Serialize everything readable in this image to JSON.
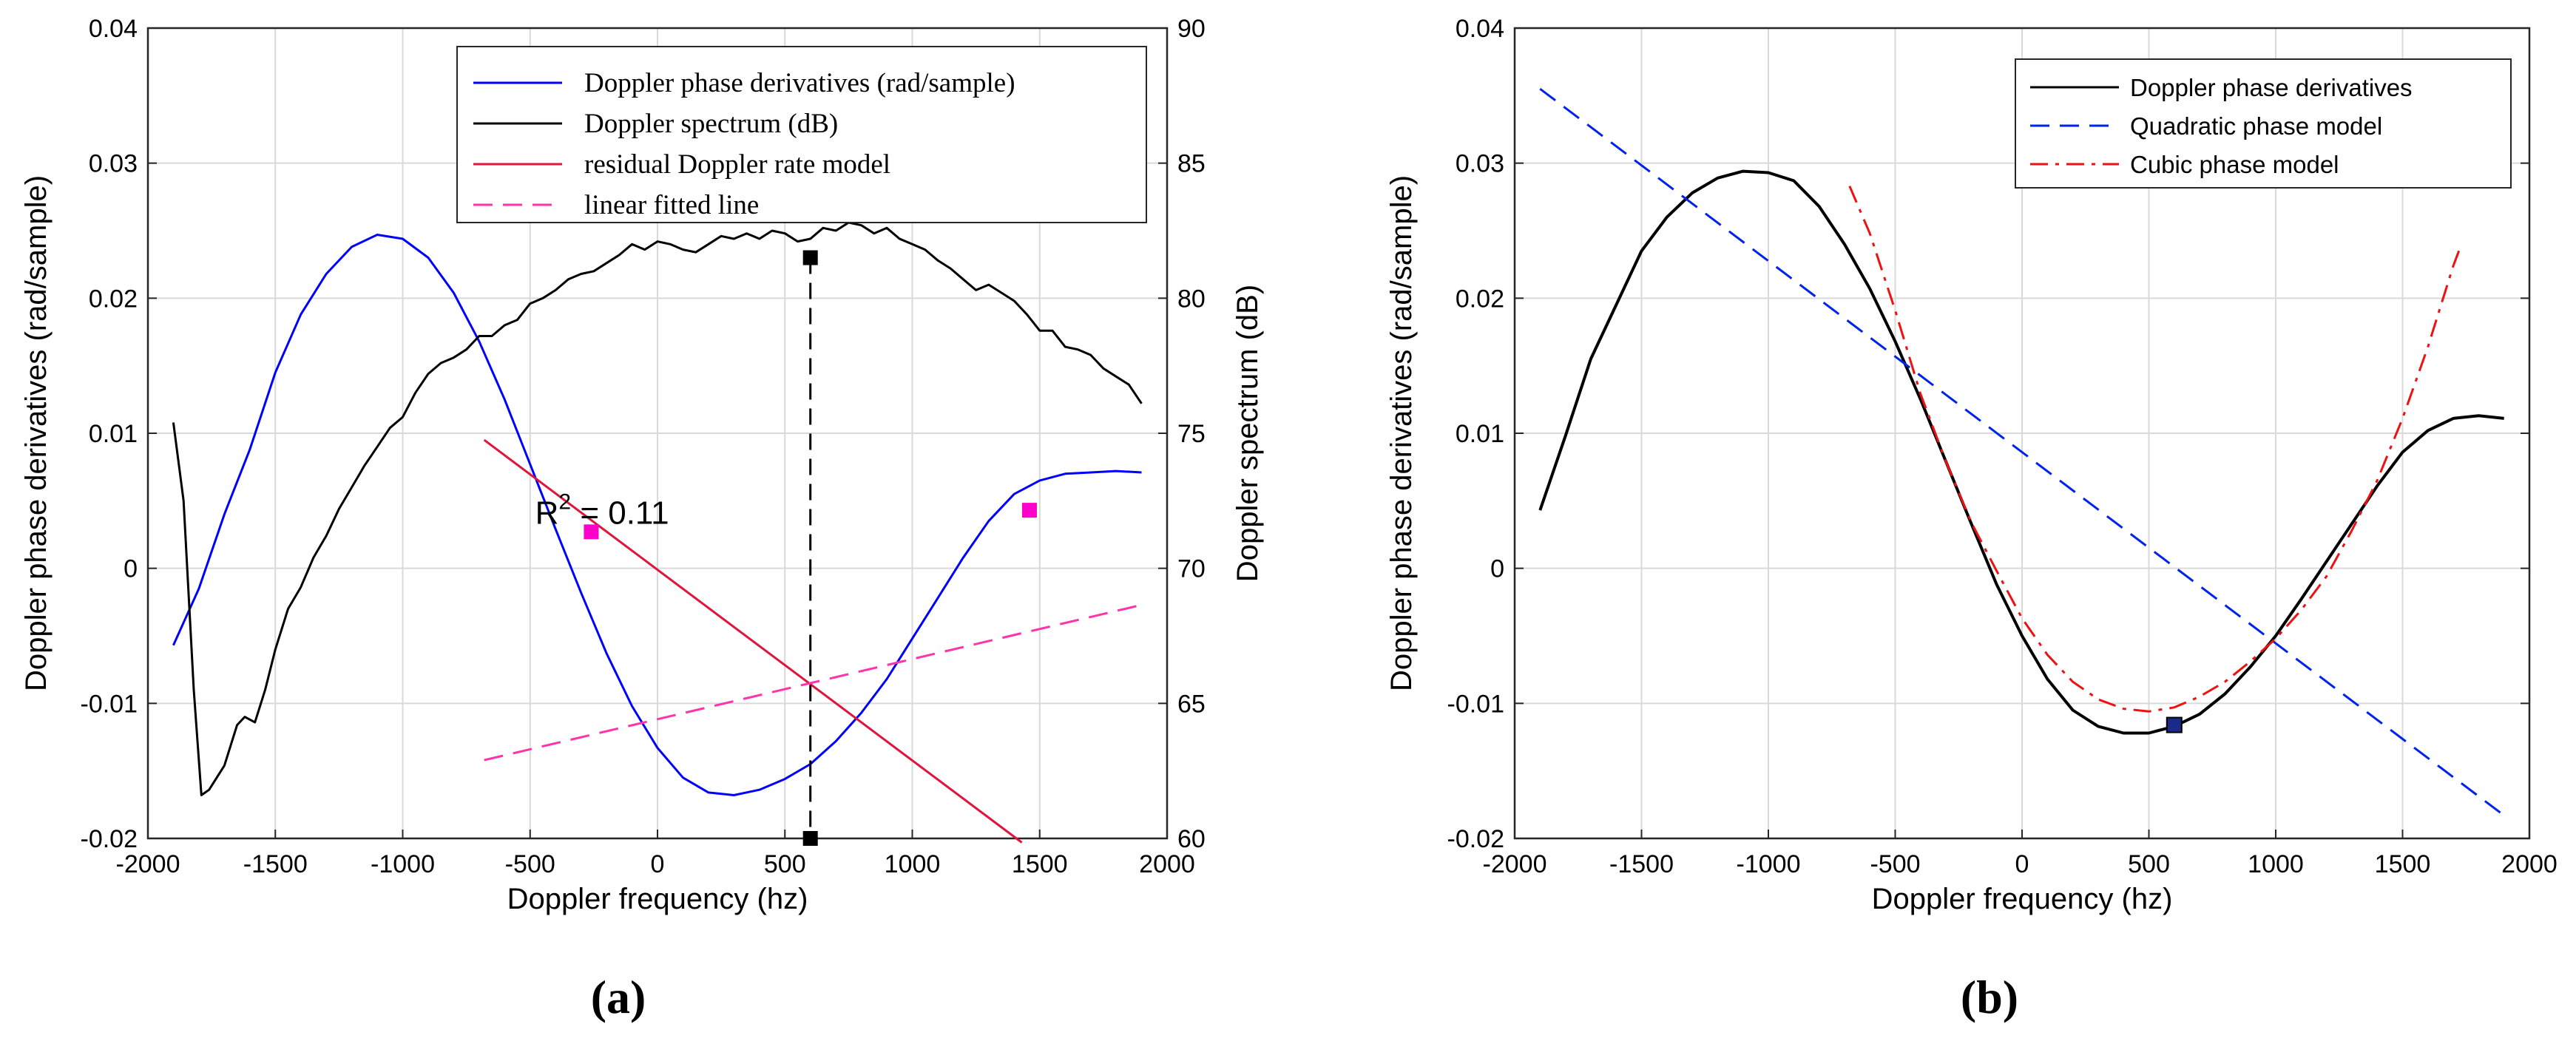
{
  "chart_data": [
    {
      "type": "line",
      "caption": "(a)",
      "xlabel": "Doppler frequency (hz)",
      "ylabel": "Doppler phase derivatives (rad/sample)",
      "y2label": "Doppler spectrum (dB)",
      "xlim": [
        -2000,
        2000
      ],
      "ylim": [
        -0.02,
        0.04
      ],
      "y2lim": [
        60,
        90
      ],
      "xticks": [
        -2000,
        -1500,
        -1000,
        -500,
        0,
        500,
        1000,
        1500,
        2000
      ],
      "xtick_labels": [
        "-2000",
        "-1500",
        "-1000",
        "-500",
        "0",
        "500",
        "1000",
        "1500",
        "2000"
      ],
      "yticks": [
        -0.02,
        -0.01,
        0,
        0.01,
        0.02,
        0.03,
        0.04
      ],
      "ytick_labels": [
        "-0.02",
        "-0.01",
        "0",
        "0.01",
        "0.02",
        "0.03",
        "0.04"
      ],
      "y2ticks": [
        60,
        65,
        70,
        75,
        80,
        85,
        90
      ],
      "y2tick_labels": [
        "60",
        "65",
        "70",
        "75",
        "80",
        "85",
        "90"
      ],
      "grid": true,
      "legend_position": "top-right",
      "annotation": {
        "text_base": "R",
        "text_sup": "2",
        "text_rest": " = 0.11",
        "x": -480,
        "y": 0.0033
      },
      "series": [
        {
          "name": "Doppler phase derivatives (rad/sample)",
          "color": "#0000ff",
          "axis": "left",
          "style": "solid",
          "x": [
            -1900,
            -1800,
            -1700,
            -1600,
            -1500,
            -1400,
            -1300,
            -1200,
            -1100,
            -1000,
            -900,
            -800,
            -700,
            -600,
            -500,
            -400,
            -300,
            -200,
            -100,
            0,
            100,
            200,
            300,
            400,
            500,
            600,
            700,
            800,
            900,
            1000,
            1100,
            1200,
            1300,
            1400,
            1500,
            1600,
            1700,
            1800,
            1900
          ],
          "y": [
            -0.0057,
            -0.0015,
            0.004,
            0.0088,
            0.0145,
            0.0188,
            0.0218,
            0.0238,
            0.0247,
            0.0244,
            0.023,
            0.0204,
            0.0168,
            0.0125,
            0.0077,
            0.0029,
            -0.0018,
            -0.0063,
            -0.0102,
            -0.0133,
            -0.0155,
            -0.0166,
            -0.0168,
            -0.0164,
            -0.0156,
            -0.0145,
            -0.0128,
            -0.0107,
            -0.0082,
            -0.0052,
            -0.0022,
            0.0008,
            0.0035,
            0.0055,
            0.0065,
            0.007,
            0.0071,
            0.0072,
            0.0071
          ]
        },
        {
          "name": "Doppler spectrum (dB)",
          "color": "#000000",
          "axis": "right",
          "style": "solid",
          "x": [
            -1900,
            -1860,
            -1820,
            -1790,
            -1760,
            -1700,
            -1650,
            -1620,
            -1580,
            -1540,
            -1500,
            -1450,
            -1400,
            -1350,
            -1300,
            -1250,
            -1200,
            -1150,
            -1100,
            -1050,
            -1000,
            -950,
            -900,
            -850,
            -800,
            -750,
            -700,
            -650,
            -600,
            -550,
            -500,
            -450,
            -400,
            -350,
            -300,
            -250,
            -200,
            -150,
            -100,
            -50,
            0,
            50,
            100,
            150,
            200,
            250,
            300,
            350,
            400,
            450,
            500,
            550,
            600,
            650,
            700,
            750,
            800,
            850,
            900,
            950,
            1000,
            1050,
            1100,
            1150,
            1200,
            1250,
            1300,
            1350,
            1400,
            1450,
            1500,
            1550,
            1600,
            1650,
            1700,
            1750,
            1800,
            1850,
            1900
          ],
          "y": [
            75.4,
            72.5,
            65.5,
            61.6,
            61.8,
            62.7,
            64.2,
            64.5,
            64.3,
            65.5,
            67.0,
            68.5,
            69.3,
            70.4,
            71.2,
            72.2,
            73.0,
            73.8,
            74.5,
            75.2,
            75.6,
            76.5,
            77.2,
            77.6,
            77.8,
            78.1,
            78.6,
            78.6,
            79.0,
            79.2,
            79.8,
            80.0,
            80.3,
            80.7,
            80.9,
            81.0,
            81.3,
            81.6,
            82.0,
            81.8,
            82.1,
            82.0,
            81.8,
            81.7,
            82.0,
            82.3,
            82.2,
            82.4,
            82.2,
            82.5,
            82.4,
            82.1,
            82.2,
            82.6,
            82.5,
            82.8,
            82.7,
            82.4,
            82.6,
            82.2,
            82.0,
            81.8,
            81.4,
            81.1,
            80.7,
            80.3,
            80.5,
            80.2,
            79.9,
            79.4,
            78.8,
            78.8,
            78.2,
            78.1,
            77.9,
            77.4,
            77.1,
            76.8,
            76.1
          ]
        },
        {
          "name": "residual Doppler rate model",
          "color": "#e0143c",
          "axis": "left",
          "style": "solid",
          "x": [
            -680,
            1430
          ],
          "y": [
            0.0095,
            -0.0203
          ]
        },
        {
          "name": "linear fitted line",
          "color": "#ff33aa",
          "axis": "left",
          "style": "dashed",
          "x": [
            -680,
            1880
          ],
          "y": [
            -0.0142,
            -0.0028
          ]
        }
      ],
      "markers": [
        {
          "label": "spectrum peak",
          "x": 600,
          "y2": 81.5,
          "color": "#000000"
        },
        {
          "label": "peak frequency",
          "x": 600,
          "y2": 60,
          "color": "#000000"
        },
        {
          "label": "left point",
          "x": -260,
          "y": 0.0027,
          "color": "#ff00cc"
        },
        {
          "label": "right point",
          "x": 1460,
          "y": 0.0043,
          "color": "#ff00cc"
        }
      ],
      "vline": {
        "x": 600,
        "y2_from": 60,
        "y2_to": 81.5
      }
    },
    {
      "type": "line",
      "caption": "(b)",
      "xlabel": "Doppler frequency (hz)",
      "ylabel": "Doppler phase derivatives (rad/sample)",
      "xlim": [
        -2000,
        2000
      ],
      "ylim": [
        -0.02,
        0.04
      ],
      "xticks": [
        -2000,
        -1500,
        -1000,
        -500,
        0,
        500,
        1000,
        1500,
        2000
      ],
      "xtick_labels": [
        "-2000",
        "-1500",
        "-1000",
        "-500",
        "0",
        "500",
        "1000",
        "1500",
        "2000"
      ],
      "yticks": [
        -0.02,
        -0.01,
        0,
        0.01,
        0.02,
        0.03,
        0.04
      ],
      "ytick_labels": [
        "-0.02",
        "-0.01",
        "0",
        "0.01",
        "0.02",
        "0.03",
        "0.04"
      ],
      "grid": true,
      "legend_position": "top-right",
      "series": [
        {
          "name": "Doppler phase derivatives",
          "color": "#000000",
          "style": "solid",
          "x": [
            -1900,
            -1800,
            -1700,
            -1600,
            -1500,
            -1400,
            -1300,
            -1200,
            -1100,
            -1000,
            -900,
            -800,
            -700,
            -600,
            -500,
            -400,
            -300,
            -200,
            -100,
            0,
            100,
            200,
            300,
            400,
            500,
            600,
            700,
            800,
            900,
            1000,
            1100,
            1200,
            1300,
            1400,
            1500,
            1600,
            1700,
            1800,
            1900
          ],
          "y": [
            0.0043,
            0.0098,
            0.0155,
            0.0195,
            0.0235,
            0.026,
            0.0278,
            0.0289,
            0.0294,
            0.0293,
            0.0287,
            0.0268,
            0.024,
            0.0207,
            0.0168,
            0.0125,
            0.0079,
            0.0033,
            -0.0012,
            -0.005,
            -0.0082,
            -0.0105,
            -0.0117,
            -0.0122,
            -0.0122,
            -0.0117,
            -0.0108,
            -0.0093,
            -0.0073,
            -0.005,
            -0.0023,
            0.0005,
            0.0033,
            0.0061,
            0.0086,
            0.0102,
            0.0111,
            0.0113,
            0.0111
          ]
        },
        {
          "name": "Quadratic phase model",
          "color": "#0022ee",
          "style": "dashed",
          "x": [
            -1900,
            1900
          ],
          "y": [
            0.0355,
            -0.0183
          ]
        },
        {
          "name": "Cubic phase model",
          "color": "#ee1111",
          "style": "dashdot",
          "x": [
            -680,
            -600,
            -500,
            -400,
            -300,
            -200,
            -100,
            0,
            100,
            200,
            300,
            400,
            500,
            600,
            700,
            800,
            900,
            1000,
            1100,
            1200,
            1300,
            1400,
            1500,
            1600,
            1700,
            1730
          ],
          "y": [
            0.0283,
            0.0248,
            0.0191,
            0.0129,
            0.0079,
            0.0034,
            -0.0002,
            -0.0037,
            -0.0064,
            -0.0084,
            -0.0097,
            -0.0104,
            -0.0106,
            -0.0103,
            -0.0095,
            -0.0084,
            -0.0069,
            -0.0052,
            -0.0031,
            -0.0006,
            0.0028,
            0.0065,
            0.0111,
            0.0164,
            0.0224,
            0.0239
          ]
        }
      ],
      "markers": [
        {
          "label": "minimum",
          "x": 600,
          "y": -0.0116,
          "color": "#1a2a8a"
        }
      ]
    }
  ]
}
